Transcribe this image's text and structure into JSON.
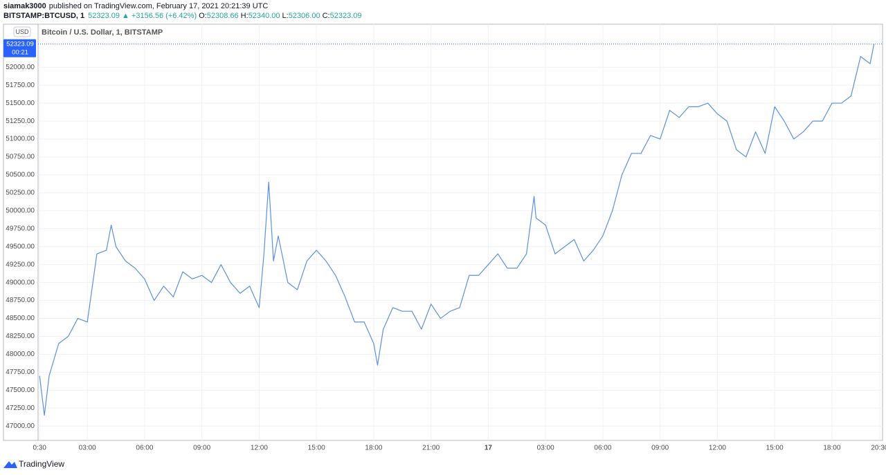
{
  "header": {
    "author": "siamak3000",
    "published": "published on TradingView.com, February 17, 2021 20:21:39 UTC",
    "symbol": "BITSTAMP:BTCUSD, 1",
    "last": "52323.09",
    "arrow": "▲",
    "change": "+3156.56 (+6.42%)",
    "ohlc": [
      {
        "label": "O:",
        "value": "52308.66"
      },
      {
        "label": "H:",
        "value": "52340.00"
      },
      {
        "label": "L:",
        "value": "52306.00"
      },
      {
        "label": "C:",
        "value": "52323.09"
      }
    ]
  },
  "footer": {
    "brand": "TradingView"
  },
  "chart_data": {
    "type": "line",
    "title": "Bitcoin / U.S. Dollar, 1, BITSTAMP",
    "currency": "USD",
    "countdown": "00:21",
    "last_price": 52323.09,
    "color": "#5b8fe0",
    "grid": true,
    "xlim": [
      0.42,
      44.65
    ],
    "ylim": [
      46800,
      52600
    ],
    "xticks": [
      {
        "value": 0.5,
        "label": "0:30"
      },
      {
        "value": 3,
        "label": "03:00"
      },
      {
        "value": 6,
        "label": "06:00"
      },
      {
        "value": 9,
        "label": "09:00"
      },
      {
        "value": 12,
        "label": "12:00"
      },
      {
        "value": 15,
        "label": "15:00"
      },
      {
        "value": 18,
        "label": "18:00"
      },
      {
        "value": 21,
        "label": "21:00"
      },
      {
        "value": 24,
        "label": "17"
      },
      {
        "value": 27,
        "label": "03:00"
      },
      {
        "value": 30,
        "label": "06:00"
      },
      {
        "value": 33,
        "label": "09:00"
      },
      {
        "value": 36,
        "label": "12:00"
      },
      {
        "value": 39,
        "label": "15:00"
      },
      {
        "value": 42,
        "label": "18:00"
      },
      {
        "value": 44.5,
        "label": "20:30"
      }
    ],
    "yticks": [
      {
        "value": 47000,
        "label": "47000.00"
      },
      {
        "value": 47250,
        "label": "47250.00"
      },
      {
        "value": 47500,
        "label": "47500.00"
      },
      {
        "value": 47750,
        "label": "47750.00"
      },
      {
        "value": 48000,
        "label": "48000.00"
      },
      {
        "value": 48250,
        "label": "48250.00"
      },
      {
        "value": 48500,
        "label": "48500.00"
      },
      {
        "value": 48750,
        "label": "48750.00"
      },
      {
        "value": 49000,
        "label": "49000.00"
      },
      {
        "value": 49250,
        "label": "49250.00"
      },
      {
        "value": 49500,
        "label": "49500.00"
      },
      {
        "value": 49750,
        "label": "49750.00"
      },
      {
        "value": 50000,
        "label": "50000.00"
      },
      {
        "value": 50250,
        "label": "50250.00"
      },
      {
        "value": 50500,
        "label": "50500.00"
      },
      {
        "value": 50750,
        "label": "50750.00"
      },
      {
        "value": 51000,
        "label": "51000.00"
      },
      {
        "value": 51250,
        "label": "51250.00"
      },
      {
        "value": 51500,
        "label": "51500.00"
      },
      {
        "value": 51750,
        "label": "51750.00"
      },
      {
        "value": 52000,
        "label": "52000.00"
      }
    ],
    "x": [
      0.5,
      0.75,
      1,
      1.5,
      2,
      2.5,
      3,
      3.5,
      4,
      4.25,
      4.5,
      5,
      5.5,
      6,
      6.5,
      7,
      7.5,
      8,
      8.5,
      9,
      9.5,
      10,
      10.5,
      11,
      11.5,
      12,
      12.25,
      12.5,
      12.75,
      13,
      13.5,
      14,
      14.5,
      15,
      15.5,
      16,
      16.5,
      17,
      17.5,
      18,
      18.2,
      18.5,
      19,
      19.5,
      20,
      20.5,
      21,
      21.5,
      22,
      22.5,
      23,
      23.5,
      24,
      24.5,
      25,
      25.5,
      26,
      26.4,
      26.5,
      27,
      27.5,
      28,
      28.5,
      29,
      29.5,
      30,
      30.5,
      31,
      31.5,
      32,
      32.5,
      33,
      33.5,
      34,
      34.5,
      35,
      35.5,
      36,
      36.5,
      37,
      37.5,
      38,
      38.5,
      39,
      39.5,
      40,
      40.5,
      41,
      41.5,
      42,
      42.5,
      43,
      43.5,
      44,
      44.2
    ],
    "series": [
      {
        "name": "BTCUSD",
        "values": [
          47700,
          47150,
          47700,
          48150,
          48250,
          48500,
          48450,
          49400,
          49450,
          49800,
          49500,
          49300,
          49200,
          49050,
          48750,
          48950,
          48800,
          49150,
          49050,
          49100,
          49000,
          49250,
          49000,
          48850,
          48950,
          48650,
          49400,
          50400,
          49300,
          49650,
          49000,
          48900,
          49300,
          49450,
          49300,
          49100,
          48800,
          48450,
          48450,
          48150,
          47850,
          48350,
          48650,
          48600,
          48600,
          48350,
          48700,
          48500,
          48600,
          48650,
          49100,
          49100,
          49250,
          49400,
          49200,
          49200,
          49400,
          50200,
          49900,
          49800,
          49400,
          49500,
          49600,
          49300,
          49450,
          49650,
          50000,
          50500,
          50800,
          50800,
          51050,
          51000,
          51400,
          51300,
          51450,
          51450,
          51500,
          51350,
          51250,
          50850,
          50750,
          51100,
          50800,
          51450,
          51250,
          51000,
          51100,
          51250,
          51250,
          51500,
          51500,
          51600,
          52150,
          52050,
          52323.09
        ]
      }
    ]
  }
}
